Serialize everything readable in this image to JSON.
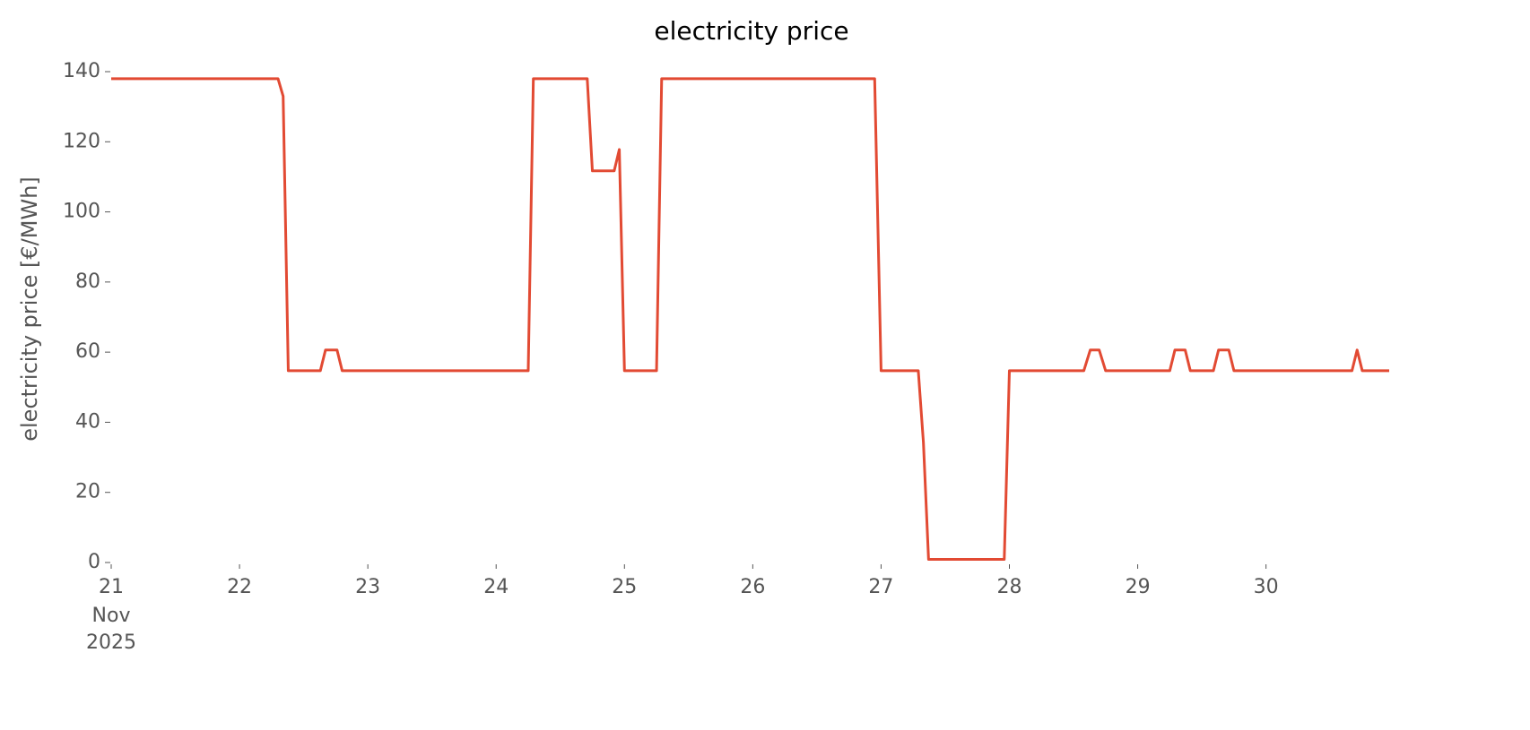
{
  "chart_data": {
    "type": "line",
    "title": "electricity price",
    "ylabel": "electricity price [€/MWh]",
    "x": [
      21.0,
      22.3,
      22.34,
      22.38,
      22.63,
      22.67,
      22.76,
      22.8,
      24.25,
      24.29,
      24.71,
      24.75,
      24.92,
      24.96,
      25.0,
      25.25,
      25.29,
      26.95,
      27.0,
      27.29,
      27.33,
      27.37,
      27.96,
      28.0,
      28.58,
      28.63,
      28.7,
      28.75,
      29.25,
      29.29,
      29.37,
      29.41,
      29.59,
      29.63,
      29.71,
      29.75,
      30.67,
      30.71,
      30.75,
      30.96
    ],
    "series": [
      {
        "name": "electricity price",
        "color": "#e24a33",
        "values": [
          138,
          138,
          133,
          54.7,
          54.7,
          60.6,
          60.6,
          54.7,
          54.7,
          138,
          138,
          111.7,
          111.7,
          117.8,
          54.7,
          54.7,
          138,
          138,
          54.7,
          54.7,
          34.2,
          0.9,
          0.9,
          54.7,
          54.7,
          60.6,
          60.6,
          54.7,
          54.7,
          60.6,
          60.6,
          54.7,
          54.7,
          60.6,
          60.6,
          54.7,
          54.7,
          60.6,
          54.7,
          54.7
        ]
      }
    ],
    "xlim": [
      21,
      30.96
    ],
    "xticks": [
      21,
      22,
      23,
      24,
      25,
      26,
      27,
      28,
      29,
      30
    ],
    "x_date_labels": [
      "Nov",
      "2025"
    ],
    "ylim": [
      0,
      140
    ],
    "yticks": [
      0,
      20,
      40,
      60,
      80,
      100,
      120,
      140
    ],
    "grid": false
  }
}
